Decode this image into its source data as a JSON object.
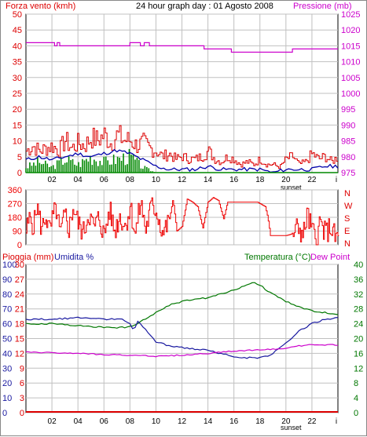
{
  "header": {
    "wind_label": "Forza vento (kmh)",
    "title": "24 hour graph day : 01 Agosto 2008",
    "pressure_label": "Pressione (mb)"
  },
  "mid_labels": [
    "N",
    "W",
    "S",
    "E",
    "N"
  ],
  "bottom_labels": {
    "rain_label": "Pioggia (mm)",
    "humidity_label": "Umidita %",
    "temp_label": "Temperatura (°C)",
    "dew_label": "Dew Point"
  },
  "x_ticks": [
    "02",
    "04",
    "06",
    "08",
    "10",
    "12",
    "14",
    "16",
    "18",
    "20",
    "22",
    "i"
  ],
  "sunset_label": "sunset",
  "colors": {
    "wind": "#dd0000",
    "gust": "#dd0000",
    "wind_avg": "#0000aa",
    "wind_green": "#008800",
    "pressure": "#cc00cc",
    "direction": "#ee0000",
    "temperature": "#007700",
    "humidity": "#1a1aa0",
    "dewpoint": "#cc00cc",
    "rain": "#dd0000",
    "grid": "#c0c0c0"
  },
  "chart_data": [
    {
      "type": "bar",
      "name": "wind-pressure",
      "axes": {
        "left": {
          "label": "Forza vento (kmh)",
          "ticks": [
            0,
            5,
            10,
            15,
            20,
            25,
            30,
            35,
            40,
            45,
            50
          ],
          "range": [
            0,
            50
          ]
        },
        "right": {
          "label": "Pressione (mb)",
          "ticks": [
            975,
            980,
            985,
            990,
            995,
            1000,
            1005,
            1010,
            1015,
            1020,
            1025
          ],
          "range": [
            975,
            1025
          ]
        }
      },
      "x_range_hours": [
        0,
        24
      ],
      "wind_gust_profile": [
        [
          0,
          8
        ],
        [
          0.5,
          10
        ],
        [
          1,
          8
        ],
        [
          1.5,
          9
        ],
        [
          2,
          10
        ],
        [
          2.5,
          8
        ],
        [
          3,
          12
        ],
        [
          3.5,
          9
        ],
        [
          4,
          11
        ],
        [
          4.5,
          10
        ],
        [
          5,
          13
        ],
        [
          5.5,
          12
        ],
        [
          6,
          14
        ],
        [
          6.5,
          11
        ],
        [
          7,
          14
        ],
        [
          7.5,
          12
        ],
        [
          8,
          12
        ],
        [
          8.5,
          10
        ],
        [
          9,
          11
        ],
        [
          9.5,
          9
        ],
        [
          10,
          8
        ],
        [
          10.5,
          6
        ],
        [
          11,
          7
        ],
        [
          11.5,
          5
        ],
        [
          12,
          6
        ],
        [
          12.5,
          5
        ],
        [
          13,
          5
        ],
        [
          13.5,
          6
        ],
        [
          14,
          8
        ],
        [
          14.5,
          5
        ],
        [
          15,
          4
        ],
        [
          15.5,
          6
        ],
        [
          16,
          5
        ],
        [
          16.5,
          3
        ],
        [
          17,
          4
        ],
        [
          17.5,
          3
        ],
        [
          18,
          5
        ],
        [
          18.5,
          3
        ],
        [
          19,
          3
        ],
        [
          19.5,
          2
        ],
        [
          20,
          5
        ],
        [
          20.5,
          6
        ],
        [
          21,
          3
        ],
        [
          21.5,
          4
        ],
        [
          22,
          7
        ],
        [
          22.5,
          5
        ],
        [
          23,
          6
        ],
        [
          23.5,
          4
        ],
        [
          24,
          6
        ]
      ],
      "wind_avg_profile": [
        [
          0,
          4
        ],
        [
          1,
          5
        ],
        [
          2,
          4
        ],
        [
          3,
          5
        ],
        [
          4,
          6
        ],
        [
          5,
          5
        ],
        [
          6,
          6
        ],
        [
          7,
          7
        ],
        [
          8,
          6
        ],
        [
          9,
          4
        ],
        [
          10,
          2
        ],
        [
          11,
          1
        ],
        [
          12,
          1
        ],
        [
          13,
          1
        ],
        [
          14,
          2
        ],
        [
          15,
          1
        ],
        [
          16,
          1
        ],
        [
          17,
          1
        ],
        [
          18,
          1
        ],
        [
          19,
          0
        ],
        [
          20,
          1
        ],
        [
          21,
          1
        ],
        [
          22,
          1
        ],
        [
          23,
          2
        ],
        [
          24,
          2
        ]
      ],
      "wind_green_profile": [
        [
          0,
          2
        ],
        [
          1,
          4
        ],
        [
          2,
          2
        ],
        [
          3,
          5
        ],
        [
          4,
          3
        ],
        [
          5,
          6
        ],
        [
          6,
          4
        ],
        [
          7,
          5
        ],
        [
          8,
          6
        ],
        [
          9,
          2
        ],
        [
          10,
          0
        ],
        [
          24,
          0
        ]
      ],
      "pressure": [
        [
          0,
          1016
        ],
        [
          2.2,
          1016
        ],
        [
          2.2,
          1015
        ],
        [
          2.4,
          1015
        ],
        [
          2.4,
          1016
        ],
        [
          2.6,
          1016
        ],
        [
          2.6,
          1015
        ],
        [
          8,
          1015
        ],
        [
          8,
          1016
        ],
        [
          8.8,
          1016
        ],
        [
          8.8,
          1015
        ],
        [
          9.1,
          1015
        ],
        [
          9.1,
          1016
        ],
        [
          9.5,
          1016
        ],
        [
          9.5,
          1015
        ],
        [
          13.7,
          1015
        ],
        [
          13.7,
          1014
        ],
        [
          15.8,
          1014
        ],
        [
          15.8,
          1013
        ],
        [
          20.5,
          1013
        ],
        [
          20.5,
          1014
        ],
        [
          24,
          1014
        ]
      ]
    },
    {
      "type": "line",
      "name": "wind-direction",
      "axes": {
        "left": {
          "ticks": [
            0,
            90,
            180,
            270,
            360
          ],
          "range": [
            0,
            360
          ]
        }
      },
      "direction_profile": [
        [
          0,
          90
        ],
        [
          0.3,
          180
        ],
        [
          0.6,
          120
        ],
        [
          0.8,
          260
        ],
        [
          1.2,
          100
        ],
        [
          1.5,
          200
        ],
        [
          1.8,
          80
        ],
        [
          2,
          160
        ],
        [
          2.3,
          240
        ],
        [
          2.6,
          60
        ],
        [
          3,
          200
        ],
        [
          3.3,
          100
        ],
        [
          3.6,
          250
        ],
        [
          4,
          140
        ],
        [
          4.4,
          80
        ],
        [
          4.8,
          210
        ],
        [
          5.2,
          110
        ],
        [
          5.6,
          180
        ],
        [
          6,
          60
        ],
        [
          6.4,
          230
        ],
        [
          6.8,
          90
        ],
        [
          7.2,
          190
        ],
        [
          7.6,
          120
        ],
        [
          8,
          250
        ],
        [
          8.4,
          70
        ],
        [
          8.8,
          280
        ],
        [
          9.2,
          100
        ],
        [
          9.6,
          250
        ],
        [
          10,
          230
        ],
        [
          10.5,
          80
        ],
        [
          11,
          150
        ],
        [
          11.3,
          300
        ],
        [
          11.6,
          90
        ],
        [
          12,
          120
        ],
        [
          12.4,
          300
        ],
        [
          12.8,
          280
        ],
        [
          13.2,
          250
        ],
        [
          13.6,
          110
        ],
        [
          14,
          280
        ],
        [
          14.4,
          310
        ],
        [
          14.8,
          290
        ],
        [
          15.2,
          170
        ],
        [
          15.5,
          280
        ],
        [
          16,
          280
        ],
        [
          17,
          280
        ],
        [
          17.8,
          280
        ],
        [
          18.4,
          250
        ],
        [
          18.6,
          180
        ],
        [
          18.8,
          60
        ],
        [
          20,
          60
        ],
        [
          20.4,
          70
        ],
        [
          21,
          120
        ],
        [
          21.3,
          50
        ],
        [
          21.6,
          200
        ],
        [
          22,
          90
        ],
        [
          22.3,
          30
        ],
        [
          22.6,
          150
        ],
        [
          23,
          70
        ],
        [
          23.4,
          120
        ],
        [
          23.8,
          40
        ],
        [
          24,
          60
        ]
      ]
    },
    {
      "type": "line",
      "name": "temp-humidity-dew-rain",
      "axes": {
        "left": {
          "label": "Pioggia (mm) / Umidita %",
          "humidity_ticks": [
            0,
            10,
            20,
            30,
            40,
            50,
            60,
            70,
            80,
            90,
            100
          ],
          "rain_ticks": [
            0,
            3,
            6,
            9,
            12,
            15,
            18,
            21,
            24,
            27,
            30
          ]
        },
        "right": {
          "label": "Temperatura (°C) / Dew Point",
          "ticks": [
            0,
            4,
            8,
            12,
            16,
            20,
            24,
            28,
            32,
            36,
            40
          ],
          "range": [
            0,
            40
          ]
        }
      },
      "temperature_c": [
        [
          0,
          24
        ],
        [
          2,
          24
        ],
        [
          4,
          23.5
        ],
        [
          6,
          23
        ],
        [
          7.5,
          23
        ],
        [
          8,
          23.2
        ],
        [
          8.5,
          24
        ],
        [
          9,
          25
        ],
        [
          10,
          27
        ],
        [
          11,
          29
        ],
        [
          12,
          30
        ],
        [
          13,
          30.5
        ],
        [
          14,
          31
        ],
        [
          15,
          32
        ],
        [
          16,
          33
        ],
        [
          17,
          34.5
        ],
        [
          17.5,
          35
        ],
        [
          18,
          34.5
        ],
        [
          18.5,
          33
        ],
        [
          19,
          32
        ],
        [
          20,
          30
        ],
        [
          21,
          28.5
        ],
        [
          22,
          27.5
        ],
        [
          23,
          27
        ],
        [
          24,
          26.5
        ]
      ],
      "humidity_pct": [
        [
          0,
          63
        ],
        [
          2,
          63
        ],
        [
          4,
          64
        ],
        [
          6,
          63
        ],
        [
          7.5,
          63
        ],
        [
          8,
          60
        ],
        [
          8.3,
          55
        ],
        [
          8.6,
          62
        ],
        [
          9,
          58
        ],
        [
          10,
          48
        ],
        [
          11,
          45
        ],
        [
          12,
          44
        ],
        [
          13,
          43
        ],
        [
          14,
          42
        ],
        [
          15,
          40
        ],
        [
          16,
          38
        ],
        [
          17,
          37
        ],
        [
          18,
          37
        ],
        [
          18.5,
          38
        ],
        [
          19,
          40
        ],
        [
          20,
          47
        ],
        [
          21,
          55
        ],
        [
          22,
          60
        ],
        [
          23,
          63
        ],
        [
          24,
          64
        ]
      ],
      "dewpoint_c": [
        [
          0,
          16.3
        ],
        [
          2,
          16.2
        ],
        [
          4,
          16
        ],
        [
          6,
          15.7
        ],
        [
          8,
          15.5
        ],
        [
          9,
          15.5
        ],
        [
          10,
          15.2
        ],
        [
          12,
          15.5
        ],
        [
          14,
          16
        ],
        [
          16,
          16.6
        ],
        [
          18,
          17
        ],
        [
          20,
          17.3
        ],
        [
          21,
          18
        ],
        [
          22,
          18.3
        ],
        [
          24,
          18.3
        ]
      ],
      "rain_mm": [
        [
          0,
          0
        ],
        [
          24,
          0
        ]
      ]
    }
  ]
}
